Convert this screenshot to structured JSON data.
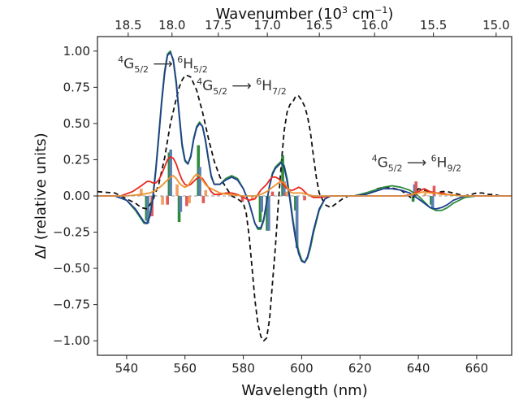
{
  "chart_data": {
    "type": "line",
    "xlabel": "Wavelength (nm)",
    "ylabel_prefix": "Δ",
    "ylabel_var": "I",
    "ylabel_rest": " (relative units)",
    "top_xlabel_main": "Wavenumber (10",
    "top_xlabel_exp1": "3",
    "top_xlabel_mid": " cm",
    "top_xlabel_exp2": "−1",
    "top_xlabel_end": ")",
    "xlim": [
      530,
      672
    ],
    "ylim": [
      -1.1,
      1.1
    ],
    "x_ticks": [
      540,
      560,
      580,
      600,
      620,
      640,
      660
    ],
    "y_ticks": [
      1.0,
      0.75,
      0.5,
      0.25,
      0.0,
      -0.25,
      -0.5,
      -0.75,
      -1.0
    ],
    "y_tick_labels": [
      "1.00",
      "0.75",
      "0.50",
      "0.25",
      "0.00",
      "−0.25",
      "−0.50",
      "−0.75",
      "−1.00"
    ],
    "top_ticks": [
      18.5,
      18.0,
      17.5,
      17.0,
      16.5,
      16.0,
      15.5,
      15.0
    ],
    "top_tick_labels": [
      "18.5",
      "18.0",
      "17.5",
      "17.0",
      "16.5",
      "16.0",
      "15.5",
      "15.0"
    ],
    "annotations": [
      {
        "sup1": "4",
        "base1": "G",
        "sub1": "5/2",
        "arrow": "⟶",
        "sup2": "6",
        "base2": "H",
        "sub2": "5/2",
        "x": 537,
        "y": 0.88
      },
      {
        "sup1": "4",
        "base1": "G",
        "sub1": "5/2",
        "arrow": "⟶",
        "sup2": "6",
        "base2": "H",
        "sub2": "7/2",
        "x": 564,
        "y": 0.73
      },
      {
        "sup1": "4",
        "base1": "G",
        "sub1": "5/2",
        "arrow": "⟶",
        "sup2": "6",
        "base2": "H",
        "sub2": "9/2",
        "x": 624,
        "y": 0.2
      }
    ],
    "series": [
      {
        "kind": "line",
        "dashed": true,
        "color": "#111111",
        "x": [
          530,
          536,
          540,
          543,
          545,
          547,
          549,
          551,
          553,
          555,
          557,
          558,
          559,
          560,
          561,
          562,
          564,
          566,
          568,
          570,
          572,
          574,
          576,
          578,
          580,
          581,
          582,
          583,
          584,
          585,
          586,
          587,
          588,
          589,
          590,
          591,
          592,
          593,
          594,
          595,
          596,
          597,
          598,
          599,
          600,
          601,
          602,
          603,
          604,
          605,
          606,
          608,
          610,
          612,
          614,
          616,
          618,
          620,
          622,
          624,
          626,
          628,
          630,
          632,
          634,
          636,
          638,
          640,
          642,
          644,
          646,
          648,
          650,
          652,
          654,
          656,
          658,
          660,
          662,
          664,
          666,
          668,
          670,
          672
        ],
        "y": [
          0.03,
          0.02,
          -0.02,
          -0.05,
          -0.08,
          -0.09,
          -0.03,
          0.08,
          0.26,
          0.5,
          0.67,
          0.75,
          0.8,
          0.83,
          0.83,
          0.82,
          0.73,
          0.58,
          0.4,
          0.24,
          0.13,
          0.06,
          0.0,
          -0.02,
          -0.05,
          -0.12,
          -0.28,
          -0.5,
          -0.72,
          -0.88,
          -0.97,
          -1.0,
          -0.98,
          -0.85,
          -0.6,
          -0.35,
          -0.05,
          0.22,
          0.45,
          0.58,
          0.63,
          0.65,
          0.69,
          0.69,
          0.66,
          0.62,
          0.55,
          0.44,
          0.28,
          0.13,
          0.02,
          -0.06,
          -0.08,
          -0.05,
          -0.02,
          0.0,
          0.0,
          0.01,
          0.02,
          0.03,
          0.05,
          0.06,
          0.06,
          0.05,
          0.04,
          0.01,
          -0.02,
          0.05,
          0.04,
          0.03,
          0.02,
          0.03,
          0.03,
          0.02,
          0.01,
          0.0,
          0.01,
          0.02,
          0.02,
          0.01,
          0.01,
          0.0,
          0.0,
          0.0
        ]
      },
      {
        "kind": "line",
        "dashed": false,
        "color": "#2e8b3d",
        "x": [
          530,
          536,
          540,
          543,
          545,
          546,
          547,
          548,
          549,
          550,
          551,
          552,
          553,
          554,
          555,
          556,
          557,
          558,
          559,
          560,
          561,
          562,
          563,
          564,
          565,
          566,
          567,
          568,
          569,
          570,
          572,
          574,
          576,
          578,
          580,
          582,
          583,
          584,
          585,
          586,
          587,
          588,
          589,
          590,
          591,
          592,
          593,
          594,
          595,
          596,
          597,
          598,
          599,
          600,
          601,
          602,
          603,
          604,
          606,
          608,
          610,
          614,
          618,
          622,
          625,
          628,
          631,
          634,
          637,
          640,
          642,
          644,
          646,
          648,
          650,
          652,
          656,
          660,
          664,
          668,
          672
        ],
        "y": [
          0.0,
          0.0,
          -0.03,
          -0.1,
          -0.16,
          -0.19,
          -0.19,
          -0.13,
          0.0,
          0.19,
          0.42,
          0.66,
          0.86,
          0.98,
          1.0,
          0.93,
          0.77,
          0.55,
          0.34,
          0.24,
          0.22,
          0.28,
          0.4,
          0.48,
          0.51,
          0.48,
          0.38,
          0.25,
          0.13,
          0.08,
          0.08,
          0.12,
          0.14,
          0.12,
          0.05,
          -0.05,
          -0.12,
          -0.19,
          -0.23,
          -0.23,
          -0.17,
          -0.05,
          0.07,
          0.16,
          0.2,
          0.22,
          0.24,
          0.21,
          0.12,
          -0.01,
          -0.16,
          -0.29,
          -0.38,
          -0.44,
          -0.46,
          -0.43,
          -0.36,
          -0.26,
          -0.1,
          -0.02,
          0.0,
          0.0,
          0.0,
          0.02,
          0.04,
          0.06,
          0.07,
          0.06,
          0.04,
          0.0,
          -0.04,
          -0.08,
          -0.1,
          -0.1,
          -0.08,
          -0.05,
          -0.01,
          0.0,
          0.0,
          0.0,
          0.0
        ]
      },
      {
        "kind": "line",
        "dashed": false,
        "color": "#1f3f8f",
        "x": [
          530,
          536,
          540,
          543,
          545,
          546,
          547,
          548,
          549,
          550,
          551,
          552,
          553,
          554,
          555,
          556,
          557,
          558,
          559,
          560,
          561,
          562,
          563,
          564,
          565,
          566,
          567,
          568,
          569,
          570,
          572,
          574,
          576,
          578,
          580,
          582,
          583,
          584,
          585,
          586,
          587,
          588,
          589,
          590,
          591,
          592,
          593,
          594,
          595,
          596,
          597,
          598,
          599,
          600,
          601,
          602,
          603,
          604,
          606,
          608,
          610,
          614,
          618,
          622,
          625,
          628,
          631,
          634,
          637,
          640,
          642,
          644,
          646,
          648,
          650,
          652,
          656,
          660,
          664,
          668,
          672
        ],
        "y": [
          0.0,
          0.0,
          -0.03,
          -0.09,
          -0.15,
          -0.18,
          -0.19,
          -0.14,
          -0.02,
          0.17,
          0.4,
          0.64,
          0.84,
          0.97,
          0.99,
          0.94,
          0.79,
          0.57,
          0.36,
          0.25,
          0.22,
          0.27,
          0.39,
          0.47,
          0.5,
          0.48,
          0.39,
          0.26,
          0.14,
          0.08,
          0.08,
          0.11,
          0.13,
          0.11,
          0.05,
          -0.05,
          -0.12,
          -0.19,
          -0.22,
          -0.22,
          -0.16,
          -0.04,
          0.07,
          0.15,
          0.19,
          0.21,
          0.23,
          0.2,
          0.1,
          -0.03,
          -0.18,
          -0.31,
          -0.4,
          -0.45,
          -0.46,
          -0.42,
          -0.34,
          -0.24,
          -0.09,
          -0.02,
          0.0,
          0.0,
          0.0,
          0.01,
          0.03,
          0.05,
          0.05,
          0.04,
          0.02,
          -0.02,
          -0.05,
          -0.08,
          -0.09,
          -0.08,
          -0.06,
          -0.03,
          0.0,
          0.0,
          0.0,
          0.0,
          0.0
        ]
      },
      {
        "kind": "line",
        "dashed": false,
        "color": "#e8281e",
        "x": [
          530,
          538,
          542,
          545,
          547,
          548,
          549,
          550,
          551,
          552,
          553,
          554,
          555,
          556,
          557,
          558,
          559,
          560,
          561,
          562,
          563,
          564,
          565,
          566,
          567,
          568,
          569,
          570,
          572,
          574,
          576,
          578,
          580,
          582,
          584,
          585,
          586,
          587,
          588,
          589,
          590,
          591,
          592,
          593,
          594,
          595,
          596,
          597,
          598,
          599,
          600,
          601,
          602,
          603,
          604,
          606,
          610,
          615,
          620,
          625,
          630,
          635,
          638,
          640,
          642,
          644,
          646,
          648,
          650,
          655,
          660,
          665,
          672
        ],
        "y": [
          0.0,
          0.0,
          0.03,
          0.07,
          0.1,
          0.1,
          0.09,
          0.09,
          0.11,
          0.15,
          0.2,
          0.25,
          0.27,
          0.26,
          0.22,
          0.16,
          0.11,
          0.08,
          0.07,
          0.08,
          0.1,
          0.12,
          0.13,
          0.12,
          0.09,
          0.06,
          0.03,
          0.01,
          0.01,
          0.02,
          0.02,
          0.01,
          -0.01,
          -0.03,
          -0.02,
          0.01,
          0.04,
          0.06,
          0.08,
          0.11,
          0.13,
          0.13,
          0.12,
          0.1,
          0.07,
          0.05,
          0.04,
          0.04,
          0.05,
          0.06,
          0.05,
          0.03,
          0.01,
          0.0,
          -0.01,
          -0.01,
          0.0,
          0.0,
          0.0,
          0.0,
          0.0,
          0.0,
          0.01,
          0.03,
          0.05,
          0.03,
          0.02,
          0.02,
          0.01,
          0.0,
          0.0,
          0.0,
          0.0
        ]
      },
      {
        "kind": "line",
        "dashed": false,
        "color": "#f0902a",
        "x": [
          530,
          540,
          545,
          548,
          550,
          552,
          554,
          555,
          556,
          557,
          558,
          559,
          560,
          561,
          562,
          563,
          564,
          565,
          566,
          567,
          568,
          569,
          570,
          572,
          575,
          580,
          584,
          586,
          588,
          590,
          592,
          593,
          594,
          595,
          596,
          597,
          598,
          600,
          602,
          604,
          606,
          610,
          620,
          630,
          636,
          638,
          640,
          642,
          644,
          646,
          648,
          650,
          655,
          660,
          672
        ],
        "y": [
          0.0,
          0.0,
          0.01,
          0.02,
          0.04,
          0.07,
          0.11,
          0.13,
          0.14,
          0.12,
          0.09,
          0.07,
          0.06,
          0.07,
          0.1,
          0.13,
          0.15,
          0.14,
          0.11,
          0.08,
          0.06,
          0.05,
          0.04,
          0.02,
          0.01,
          0.0,
          0.0,
          0.01,
          0.03,
          0.06,
          0.09,
          0.1,
          0.09,
          0.06,
          0.03,
          0.02,
          0.02,
          0.02,
          0.01,
          0.0,
          0.0,
          0.0,
          0.0,
          0.0,
          0.0,
          0.01,
          0.02,
          0.03,
          0.02,
          0.02,
          0.01,
          0.01,
          0.0,
          0.0,
          0.0
        ]
      },
      {
        "kind": "line",
        "dashed": true,
        "color": "#999999",
        "x": [
          530,
          672
        ],
        "y": [
          0.0,
          0.0
        ]
      }
    ],
    "stick_series": [
      {
        "color": "#2e8b3d",
        "x": [
          546.8,
          554.6,
          558.0,
          564.6,
          585.8,
          588.2,
          593.5,
          597.9,
          638.2,
          644.4
        ],
        "y": [
          -0.17,
          0.3,
          -0.18,
          0.35,
          -0.18,
          -0.24,
          0.28,
          -0.1,
          -0.04,
          -0.06
        ]
      },
      {
        "color": "#5a7fb0",
        "x": [
          547.3,
          555.1,
          558.5,
          565.1,
          586.3,
          588.7,
          594.0,
          598.4,
          638.7,
          644.9
        ],
        "y": [
          -0.19,
          0.32,
          -0.11,
          0.2,
          -0.11,
          -0.24,
          0.1,
          -0.36,
          0.08,
          -0.08
        ]
      },
      {
        "color": "#e05a5a",
        "x": [
          548.7,
          554.0,
          560.6,
          566.3,
          579.7,
          590.0,
          594.5,
          601.0,
          639.2,
          645.4
        ],
        "y": [
          -0.14,
          -0.06,
          -0.07,
          -0.05,
          -0.04,
          0.03,
          0.02,
          -0.03,
          0.1,
          0.07
        ]
      },
      {
        "color": "#f0a060",
        "x": [
          545.0,
          552.3,
          557.3,
          561.5,
          567.1,
          583.1,
          595.0,
          642.3
        ],
        "y": [
          0.05,
          -0.06,
          0.08,
          -0.05,
          0.04,
          -0.03,
          0.03,
          0.02
        ]
      }
    ]
  }
}
